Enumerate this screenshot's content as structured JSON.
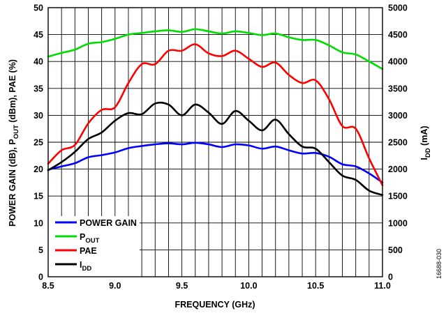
{
  "chart_data": {
    "type": "line",
    "xlabel": "FREQUENCY (GHz)",
    "ylabel_left": "POWER GAIN (dB), P_OUT (dBm), PAE (%)",
    "ylabel_right": "I_DD (mA)",
    "xlim": [
      8.5,
      11.0
    ],
    "ylim_left": [
      0,
      50
    ],
    "ylim_right": [
      0,
      5000
    ],
    "x_ticks": [
      "8.5",
      "9.0",
      "9.5",
      "10.0",
      "10.5",
      "11.0"
    ],
    "y_ticks_left": [
      "0",
      "5",
      "10",
      "15",
      "20",
      "25",
      "30",
      "35",
      "40",
      "45",
      "50"
    ],
    "y_ticks_right": [
      "0",
      "500",
      "1000",
      "1500",
      "2000",
      "2500",
      "3000",
      "3500",
      "4000",
      "4500",
      "5000"
    ],
    "grid": true,
    "legend_position": "bottom-left",
    "figure_id": "16688-030",
    "series": [
      {
        "name": "POWER GAIN",
        "axis": "left",
        "color": "#0000ff",
        "x": [
          8.5,
          8.6,
          8.7,
          8.8,
          8.9,
          9.0,
          9.1,
          9.2,
          9.3,
          9.4,
          9.5,
          9.6,
          9.7,
          9.8,
          9.9,
          10.0,
          10.1,
          10.2,
          10.3,
          10.4,
          10.5,
          10.6,
          10.7,
          10.8,
          10.9,
          11.0
        ],
        "values": [
          19.9,
          20.5,
          21.1,
          22.2,
          22.6,
          23.1,
          23.9,
          24.3,
          24.6,
          24.8,
          24.6,
          24.9,
          24.6,
          24.1,
          24.6,
          24.4,
          23.8,
          24.2,
          23.5,
          22.9,
          23.0,
          22.3,
          20.9,
          20.5,
          19.2,
          17.5
        ]
      },
      {
        "name": "P_OUT",
        "axis": "left",
        "color": "#00dd00",
        "x": [
          8.5,
          8.6,
          8.7,
          8.8,
          8.9,
          9.0,
          9.1,
          9.2,
          9.3,
          9.4,
          9.5,
          9.6,
          9.7,
          9.8,
          9.9,
          10.0,
          10.1,
          10.2,
          10.3,
          10.4,
          10.5,
          10.6,
          10.7,
          10.8,
          10.9,
          11.0
        ],
        "values": [
          40.9,
          41.6,
          42.2,
          43.3,
          43.6,
          44.2,
          45.0,
          45.3,
          45.6,
          45.8,
          45.5,
          46.0,
          45.6,
          45.2,
          45.6,
          45.3,
          44.9,
          45.2,
          44.5,
          44.0,
          44.0,
          43.0,
          41.7,
          41.3,
          40.0,
          38.6
        ]
      },
      {
        "name": "PAE",
        "axis": "left",
        "color": "#ff0000",
        "x": [
          8.5,
          8.6,
          8.7,
          8.8,
          8.9,
          9.0,
          9.1,
          9.2,
          9.3,
          9.4,
          9.5,
          9.6,
          9.7,
          9.8,
          9.9,
          10.0,
          10.1,
          10.2,
          10.3,
          10.4,
          10.5,
          10.6,
          10.7,
          10.8,
          10.9,
          11.0
        ],
        "values": [
          21.0,
          23.5,
          24.5,
          28.5,
          31.0,
          31.5,
          36.0,
          39.5,
          39.5,
          42.0,
          42.0,
          43.2,
          41.5,
          41.0,
          42.0,
          40.5,
          39.0,
          39.8,
          37.5,
          36.0,
          36.5,
          33.0,
          28.0,
          27.5,
          22.0,
          17.0
        ]
      },
      {
        "name": "I_DD",
        "axis": "right",
        "color": "#000000",
        "x": [
          8.5,
          8.6,
          8.7,
          8.8,
          8.9,
          9.0,
          9.1,
          9.2,
          9.3,
          9.4,
          9.5,
          9.6,
          9.7,
          9.8,
          9.9,
          10.0,
          10.1,
          10.2,
          10.3,
          10.4,
          10.5,
          10.6,
          10.7,
          10.8,
          10.9,
          11.0
        ],
        "values": [
          1980,
          2130,
          2320,
          2560,
          2680,
          2900,
          3040,
          3020,
          3220,
          3200,
          3000,
          3200,
          3050,
          2840,
          3080,
          2900,
          2720,
          2920,
          2650,
          2420,
          2380,
          2130,
          1880,
          1800,
          1600,
          1520
        ]
      }
    ],
    "legend": {
      "items": [
        {
          "main": "POWER GAIN",
          "sub": ""
        },
        {
          "main": "P",
          "sub": "OUT"
        },
        {
          "main": "PAE",
          "sub": ""
        },
        {
          "main": "I",
          "sub": "DD"
        }
      ]
    },
    "axis_title_parts": {
      "left_main_1": "POWER GAIN (dB), P",
      "left_sub": "OUT",
      "left_main_2": " (dBm), PAE (%)",
      "right_main_1": "I",
      "right_sub": "DD",
      "right_main_2": " (mA)"
    }
  }
}
